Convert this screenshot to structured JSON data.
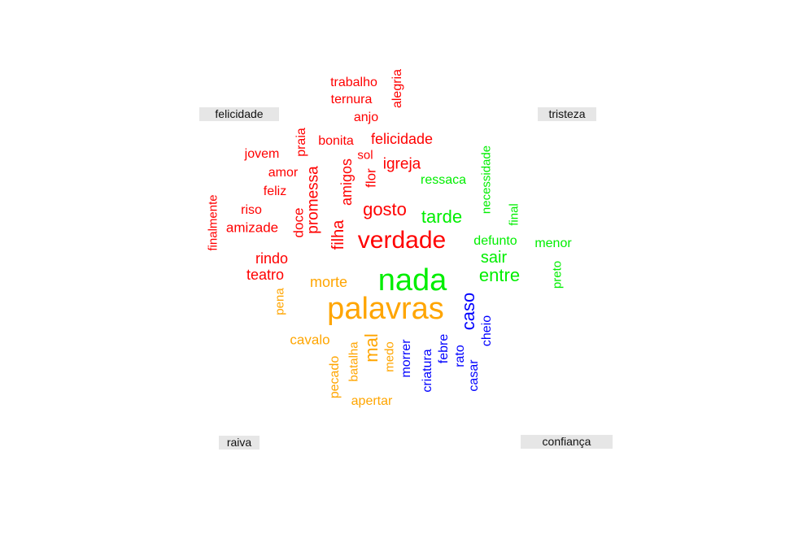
{
  "colors": {
    "felicidade": "#ff0000",
    "tristeza": "#00ee00",
    "raiva": "#ffa500",
    "confianca": "#0000ff",
    "label_bg": "#e6e6e6"
  },
  "groups": {
    "felicidade": "felicidade",
    "tristeza": "tristeza",
    "raiva": "raiva",
    "confianca": "confiança"
  },
  "words": [
    {
      "text": "trabalho",
      "group": "felicidade"
    },
    {
      "text": "alegria",
      "group": "felicidade"
    },
    {
      "text": "ternura",
      "group": "felicidade"
    },
    {
      "text": "anjo",
      "group": "felicidade"
    },
    {
      "text": "praia",
      "group": "felicidade"
    },
    {
      "text": "bonita",
      "group": "felicidade"
    },
    {
      "text": "felicidade",
      "group": "felicidade"
    },
    {
      "text": "jovem",
      "group": "felicidade"
    },
    {
      "text": "sol",
      "group": "felicidade"
    },
    {
      "text": "amor",
      "group": "felicidade"
    },
    {
      "text": "amigos",
      "group": "felicidade"
    },
    {
      "text": "flor",
      "group": "felicidade"
    },
    {
      "text": "igreja",
      "group": "felicidade"
    },
    {
      "text": "feliz",
      "group": "felicidade"
    },
    {
      "text": "promessa",
      "group": "felicidade"
    },
    {
      "text": "finalmente",
      "group": "felicidade"
    },
    {
      "text": "riso",
      "group": "felicidade"
    },
    {
      "text": "doce",
      "group": "felicidade"
    },
    {
      "text": "gosto",
      "group": "felicidade"
    },
    {
      "text": "amizade",
      "group": "felicidade"
    },
    {
      "text": "filha",
      "group": "felicidade"
    },
    {
      "text": "verdade",
      "group": "felicidade"
    },
    {
      "text": "rindo",
      "group": "felicidade"
    },
    {
      "text": "teatro",
      "group": "felicidade"
    },
    {
      "text": "ressaca",
      "group": "tristeza"
    },
    {
      "text": "necessidade",
      "group": "tristeza"
    },
    {
      "text": "tarde",
      "group": "tristeza"
    },
    {
      "text": "final",
      "group": "tristeza"
    },
    {
      "text": "defunto",
      "group": "tristeza"
    },
    {
      "text": "menor",
      "group": "tristeza"
    },
    {
      "text": "sair",
      "group": "tristeza"
    },
    {
      "text": "entre",
      "group": "tristeza"
    },
    {
      "text": "preto",
      "group": "tristeza"
    },
    {
      "text": "nada",
      "group": "tristeza"
    },
    {
      "text": "morte",
      "group": "raiva"
    },
    {
      "text": "pena",
      "group": "raiva"
    },
    {
      "text": "palavras",
      "group": "raiva"
    },
    {
      "text": "cavalo",
      "group": "raiva"
    },
    {
      "text": "mal",
      "group": "raiva"
    },
    {
      "text": "batalha",
      "group": "raiva"
    },
    {
      "text": "pecado",
      "group": "raiva"
    },
    {
      "text": "medo",
      "group": "raiva"
    },
    {
      "text": "apertar",
      "group": "raiva"
    },
    {
      "text": "caso",
      "group": "confianca"
    },
    {
      "text": "cheio",
      "group": "confianca"
    },
    {
      "text": "morrer",
      "group": "confianca"
    },
    {
      "text": "febre",
      "group": "confianca"
    },
    {
      "text": "rato",
      "group": "confianca"
    },
    {
      "text": "criatura",
      "group": "confianca"
    },
    {
      "text": "casar",
      "group": "confianca"
    }
  ]
}
